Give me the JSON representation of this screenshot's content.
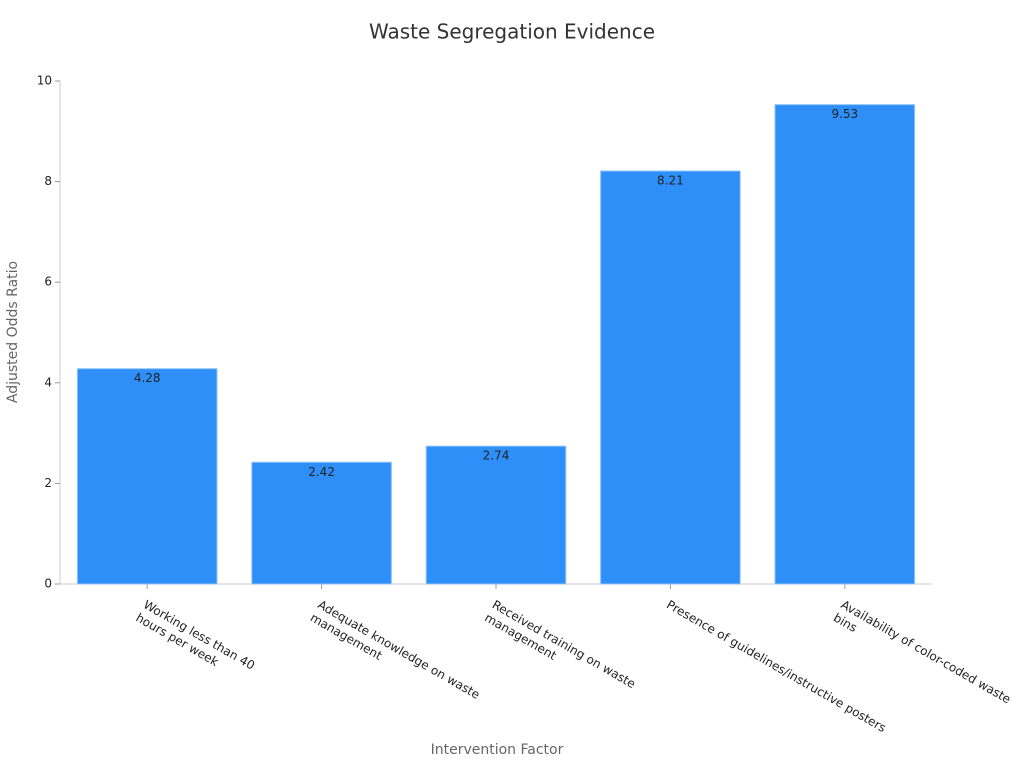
{
  "chart_data": {
    "type": "bar",
    "title": "Waste Segregation Evidence",
    "x_label": "Intervention Factor",
    "y_label": "Adjusted Odds Ratio",
    "categories": [
      [
        "Working less than 40",
        "hours per week"
      ],
      [
        "Adequate knowledge on waste",
        "management"
      ],
      [
        "Received training on waste",
        "management"
      ],
      [
        "Presence of guidelines/instructive posters"
      ],
      [
        "Availability of color-coded waste",
        "bins"
      ]
    ],
    "values": [
      4.28,
      2.42,
      2.74,
      8.21,
      9.53
    ],
    "color": "#2f8ff8",
    "ylim": [
      0,
      10
    ],
    "yticks": [
      0,
      2,
      4,
      6,
      8,
      10
    ],
    "grid": false
  }
}
